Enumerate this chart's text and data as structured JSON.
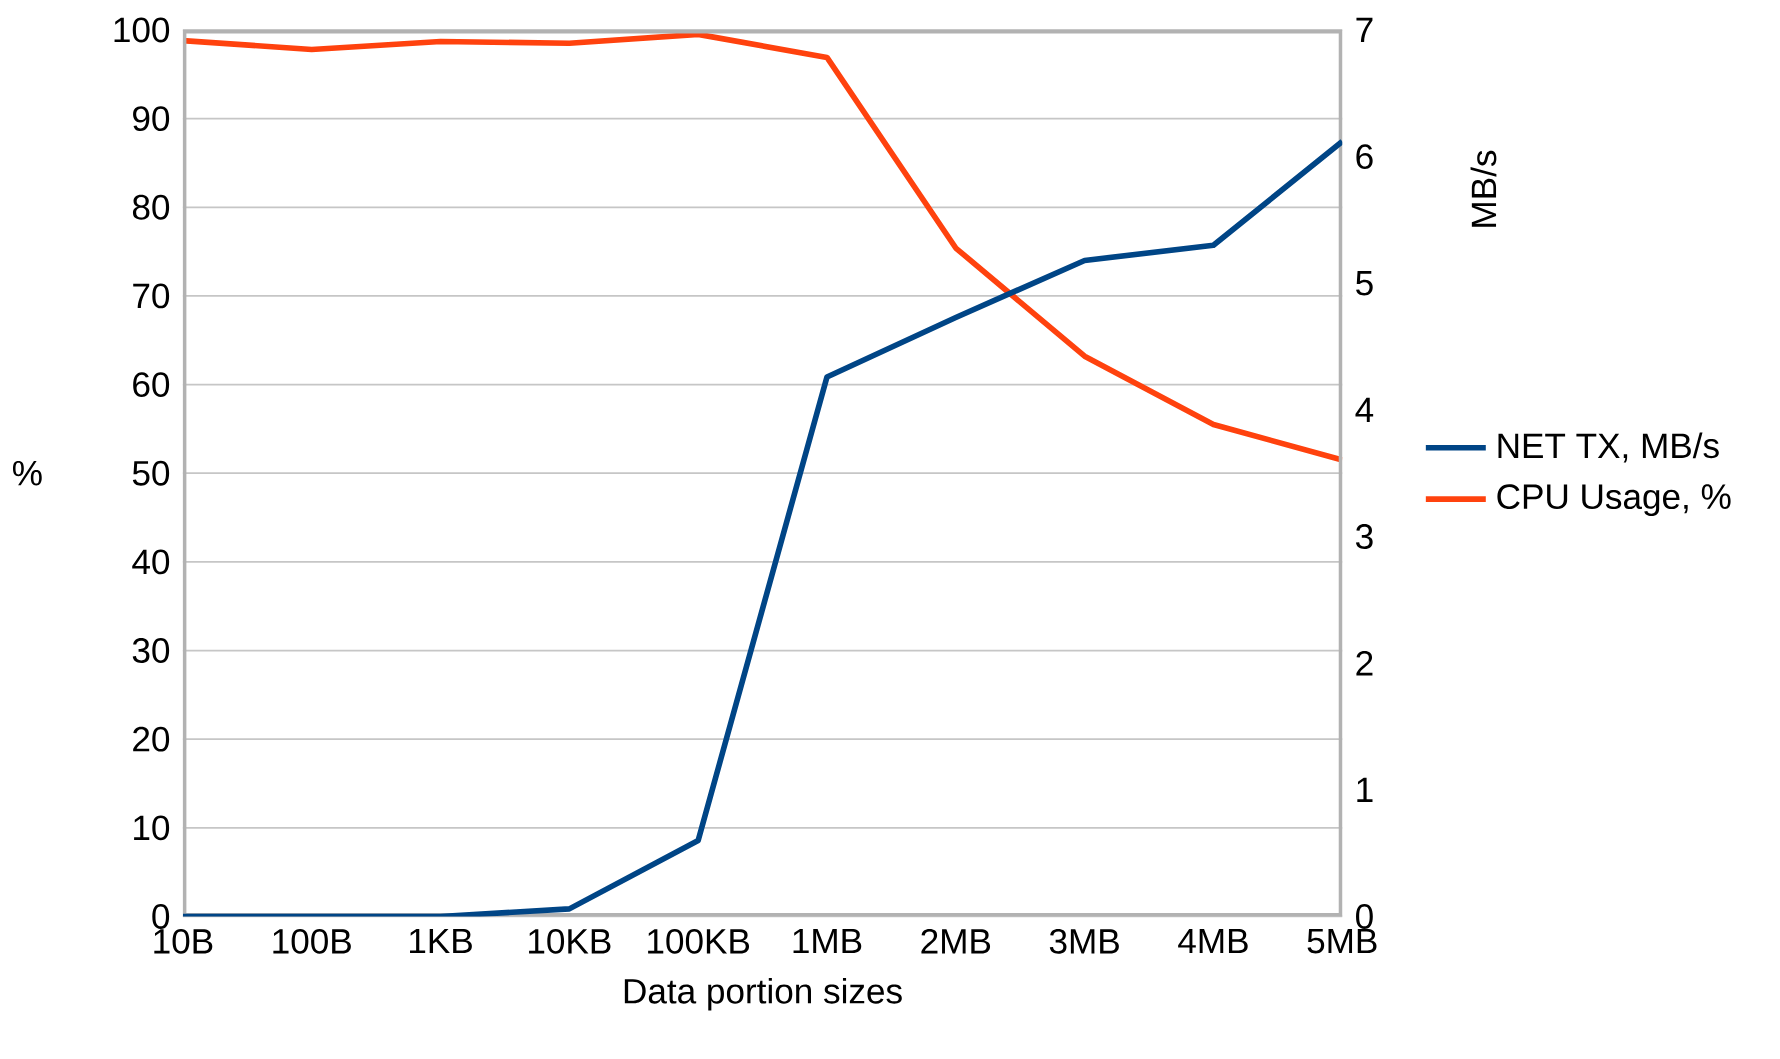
{
  "chart_data": {
    "type": "line",
    "xlabel": "Data portion sizes",
    "ylabel": "%",
    "y2label": "MB/s",
    "categories": [
      "10B",
      "100B",
      "1KB",
      "10KB",
      "100KB",
      "1MB",
      "2MB",
      "3MB",
      "4MB",
      "5MB"
    ],
    "series": [
      {
        "name": "NET TX, MB/s",
        "color": "#004586",
        "axis": "y2",
        "values": [
          0,
          0,
          0,
          0.06,
          0.6,
          4.26,
          4.73,
          5.18,
          5.3,
          6.12
        ]
      },
      {
        "name": "CPU Usage, %",
        "color": "#ff420e",
        "values": [
          98.8,
          97.8,
          98.7,
          98.5,
          99.5,
          96.9,
          75.4,
          63.2,
          55.5,
          51.5
        ]
      }
    ],
    "ylim": [
      0,
      100
    ],
    "yticks": [
      0,
      10,
      20,
      30,
      40,
      50,
      60,
      70,
      80,
      90,
      100
    ],
    "y2lim": [
      0,
      7
    ],
    "y2ticks": [
      0,
      1,
      2,
      3,
      4,
      5,
      6,
      7
    ],
    "grid": "y",
    "legend": "right",
    "line_style": "solid",
    "marker": "none"
  }
}
